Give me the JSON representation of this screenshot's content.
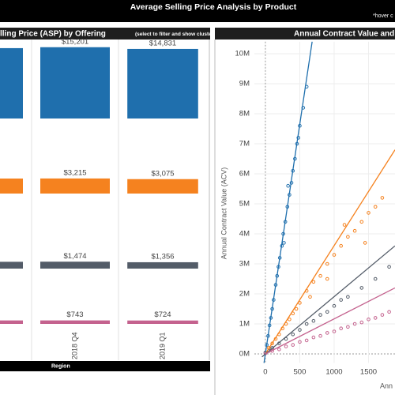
{
  "header": {
    "title": "Average Selling Price Analysis by Product",
    "note": "*hover c"
  },
  "chart_data": [
    {
      "type": "bar",
      "title": "lling Price (ASP) by Offering",
      "subtitle": "(select to filter and show clusters)",
      "categories": [
        null,
        "2018 Q4",
        "2019 Q1"
      ],
      "ylim": [
        0,
        16000
      ],
      "series": [
        {
          "color": "#1f6fad",
          "values": [
            15000,
            15201,
            14831
          ],
          "value_labels": [
            null,
            "$15,201",
            "$14,831"
          ]
        },
        {
          "color": "#f5821f",
          "values": [
            3200,
            3215,
            3075
          ],
          "value_labels": [
            null,
            "$3,215",
            "$3,075"
          ]
        },
        {
          "color": "#535c68",
          "values": [
            1450,
            1474,
            1356
          ],
          "value_labels": [
            null,
            "$1,474",
            "$1,356"
          ]
        },
        {
          "color": "#c4628e",
          "values": [
            740,
            743,
            724
          ],
          "value_labels": [
            null,
            "$743",
            "$724"
          ]
        }
      ]
    },
    {
      "type": "scatter",
      "title": "Annual Contract Value and",
      "ylabel": "Annual Contract Value (ACV)",
      "xlabel": "Ann",
      "xlim": [
        -160,
        1885
      ],
      "ylim": [
        -0.3,
        10.4
      ],
      "xticks": [
        0,
        500,
        1000,
        1500
      ],
      "yticks": [
        {
          "value": 0,
          "label": "0M"
        },
        {
          "value": 1,
          "label": "1M"
        },
        {
          "value": 2,
          "label": "2M"
        },
        {
          "value": 3,
          "label": "3M"
        },
        {
          "value": 4,
          "label": "4M"
        },
        {
          "value": 5,
          "label": "5M"
        },
        {
          "value": 6,
          "label": "6M"
        },
        {
          "value": 7,
          "label": "7M"
        },
        {
          "value": 8,
          "label": "8M"
        },
        {
          "value": 9,
          "label": "9M"
        },
        {
          "value": 10,
          "label": "10M"
        }
      ],
      "grid": true,
      "series": [
        {
          "color": "#1f6fad",
          "x": [
            20,
            40,
            60,
            80,
            100,
            120,
            150,
            170,
            190,
            210,
            240,
            260,
            290,
            320,
            350,
            380,
            400,
            430,
            460,
            480,
            500,
            550,
            600,
            330,
            270
          ],
          "values": [
            0.3,
            0.6,
            0.95,
            1.2,
            1.5,
            1.8,
            2.3,
            2.6,
            2.9,
            3.2,
            3.6,
            4.0,
            4.4,
            4.9,
            5.3,
            5.7,
            6.1,
            6.5,
            7.0,
            7.2,
            7.6,
            8.2,
            8.9,
            5.6,
            3.7
          ],
          "trend": {
            "x": [
              -20,
              680
            ],
            "values": [
              -0.3,
              10.4
            ]
          }
        },
        {
          "color": "#f5821f",
          "x": [
            50,
            100,
            150,
            200,
            250,
            300,
            350,
            400,
            450,
            500,
            600,
            700,
            800,
            900,
            1000,
            1100,
            1200,
            1300,
            1400,
            1500,
            1600,
            1700,
            1150,
            1450,
            900,
            650
          ],
          "values": [
            0.2,
            0.35,
            0.5,
            0.65,
            0.85,
            1.0,
            1.15,
            1.35,
            1.5,
            1.7,
            2.1,
            2.4,
            2.6,
            3.0,
            3.3,
            3.6,
            3.9,
            4.1,
            4.4,
            4.7,
            4.9,
            5.2,
            4.3,
            3.7,
            2.5,
            1.9
          ],
          "trend": {
            "x": [
              0,
              1885
            ],
            "values": [
              0,
              6.8
            ]
          }
        },
        {
          "color": "#535c68",
          "x": [
            0,
            50,
            100,
            200,
            300,
            400,
            500,
            600,
            700,
            800,
            900,
            1000,
            1100,
            1200,
            1400,
            1600,
            1800
          ],
          "values": [
            0.05,
            0.1,
            0.2,
            0.35,
            0.5,
            0.65,
            0.8,
            1.0,
            1.1,
            1.3,
            1.4,
            1.6,
            1.8,
            1.9,
            2.2,
            2.5,
            2.9
          ],
          "trend": {
            "x": [
              -50,
              1885
            ],
            "values": [
              -0.1,
              3.6
            ]
          }
        },
        {
          "color": "#c4628e",
          "x": [
            0,
            100,
            200,
            300,
            400,
            500,
            600,
            700,
            800,
            900,
            1000,
            1100,
            1200,
            1300,
            1400,
            1500,
            1600,
            1700,
            1800
          ],
          "values": [
            0.02,
            0.1,
            0.15,
            0.25,
            0.3,
            0.4,
            0.45,
            0.55,
            0.6,
            0.7,
            0.75,
            0.85,
            0.9,
            1.0,
            1.05,
            1.15,
            1.2,
            1.3,
            1.4
          ],
          "trend": {
            "x": [
              0,
              1885
            ],
            "values": [
              0,
              2.2
            ]
          }
        }
      ]
    }
  ],
  "footer": {
    "label": "Region"
  }
}
